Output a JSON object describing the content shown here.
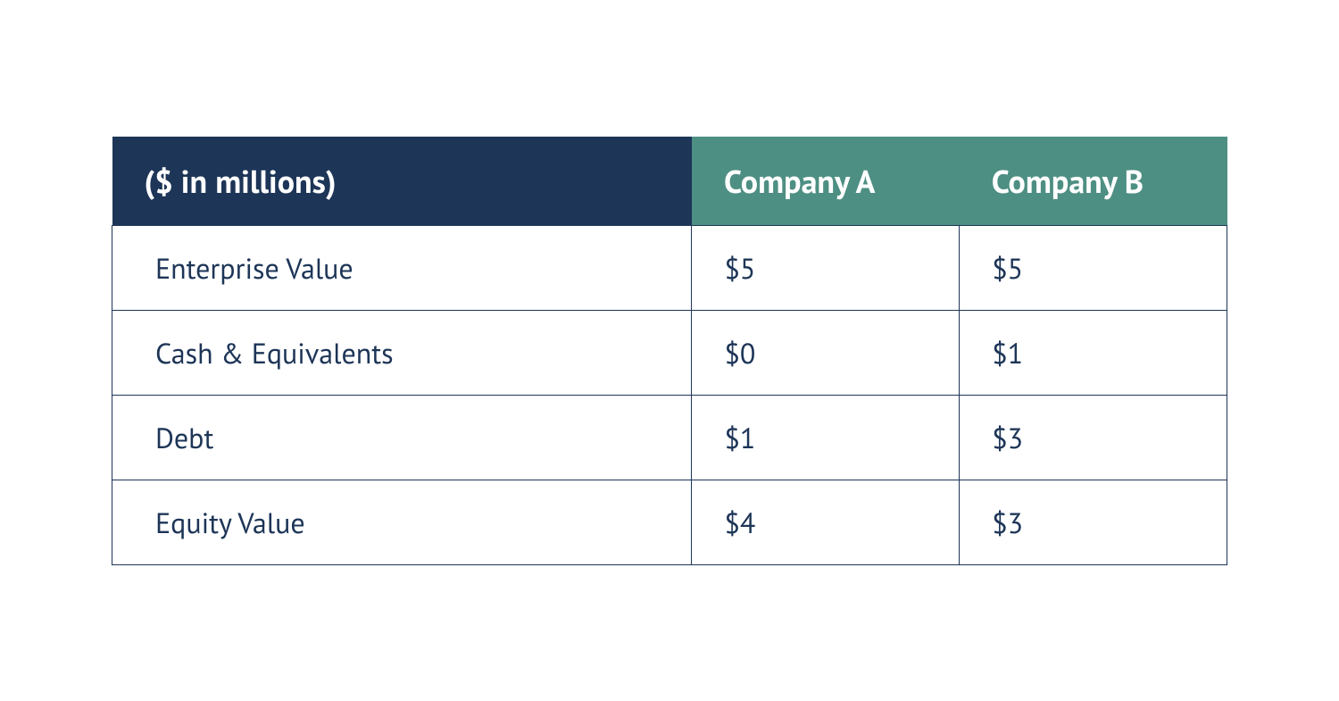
{
  "table": {
    "type": "table",
    "background_color": "#ffffff",
    "border_color": "#1d3557",
    "header_metric_bg": "#1d3557",
    "header_company_bg": "#4e8f83",
    "header_text_color": "#ffffff",
    "body_text_color": "#1d3557",
    "header_fontsize": 36,
    "body_fontsize": 32,
    "column_widths_pct": [
      52,
      24,
      24
    ],
    "columns": [
      "($ in millions)",
      "Company A",
      "Company B"
    ],
    "rows": [
      {
        "label": "Enterprise Value",
        "a": "$5",
        "b": "$5"
      },
      {
        "label": "Cash & Equivalents",
        "a": "$0",
        "b": "$1"
      },
      {
        "label": "Debt",
        "a": "$1",
        "b": "$3"
      },
      {
        "label": "Equity Value",
        "a": "$4",
        "b": "$3"
      }
    ]
  }
}
